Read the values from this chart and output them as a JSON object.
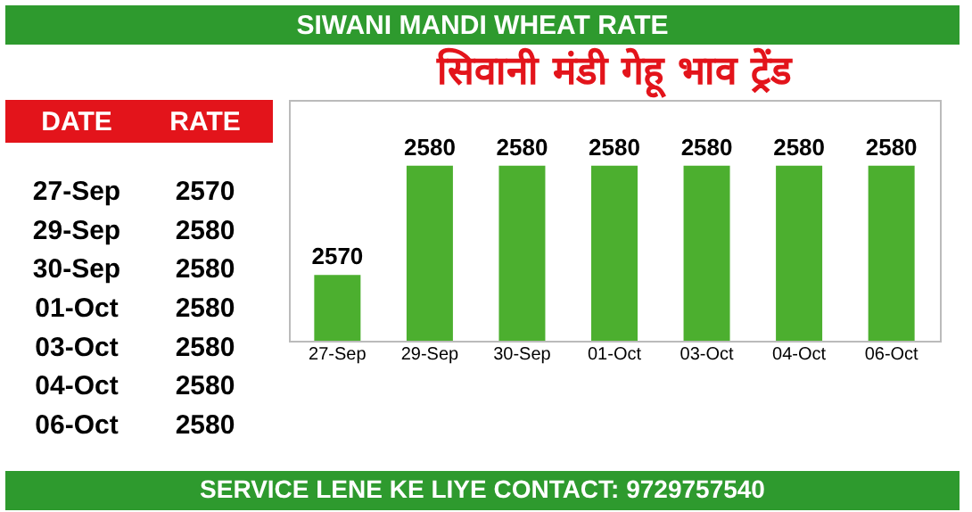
{
  "chart_data": [
    {
      "type": "other",
      "categories": [
        "27-Sep",
        "29-Sep",
        "30-Sep",
        "01-Oct",
        "03-Oct",
        "04-Oct",
        "06-Oct"
      ],
      "value_labels": [
        "2570",
        "2580",
        "2580",
        "2580",
        "2580",
        "2580",
        "2580"
      ],
      "annotations": [
        "DATE",
        "RATE"
      ]
    },
    {
      "type": "bar",
      "title": "SIWANI MANDI WHEAT RATE",
      "subtitle": "सिवानी मंडी गेहू भाव ट्रेंड",
      "categories": [
        "27-Sep",
        "29-Sep",
        "30-Sep",
        "01-Oct",
        "03-Oct",
        "04-Oct",
        "06-Oct"
      ],
      "values": [
        2570,
        2580,
        2580,
        2580,
        2580,
        2580,
        2580
      ],
      "color": "#4caf2f",
      "ylim": [
        2564,
        2586
      ],
      "data_labels": true,
      "annotations": [
        "SERVICE LENE KE LIYE CONTACT: 9729757540"
      ]
    }
  ]
}
